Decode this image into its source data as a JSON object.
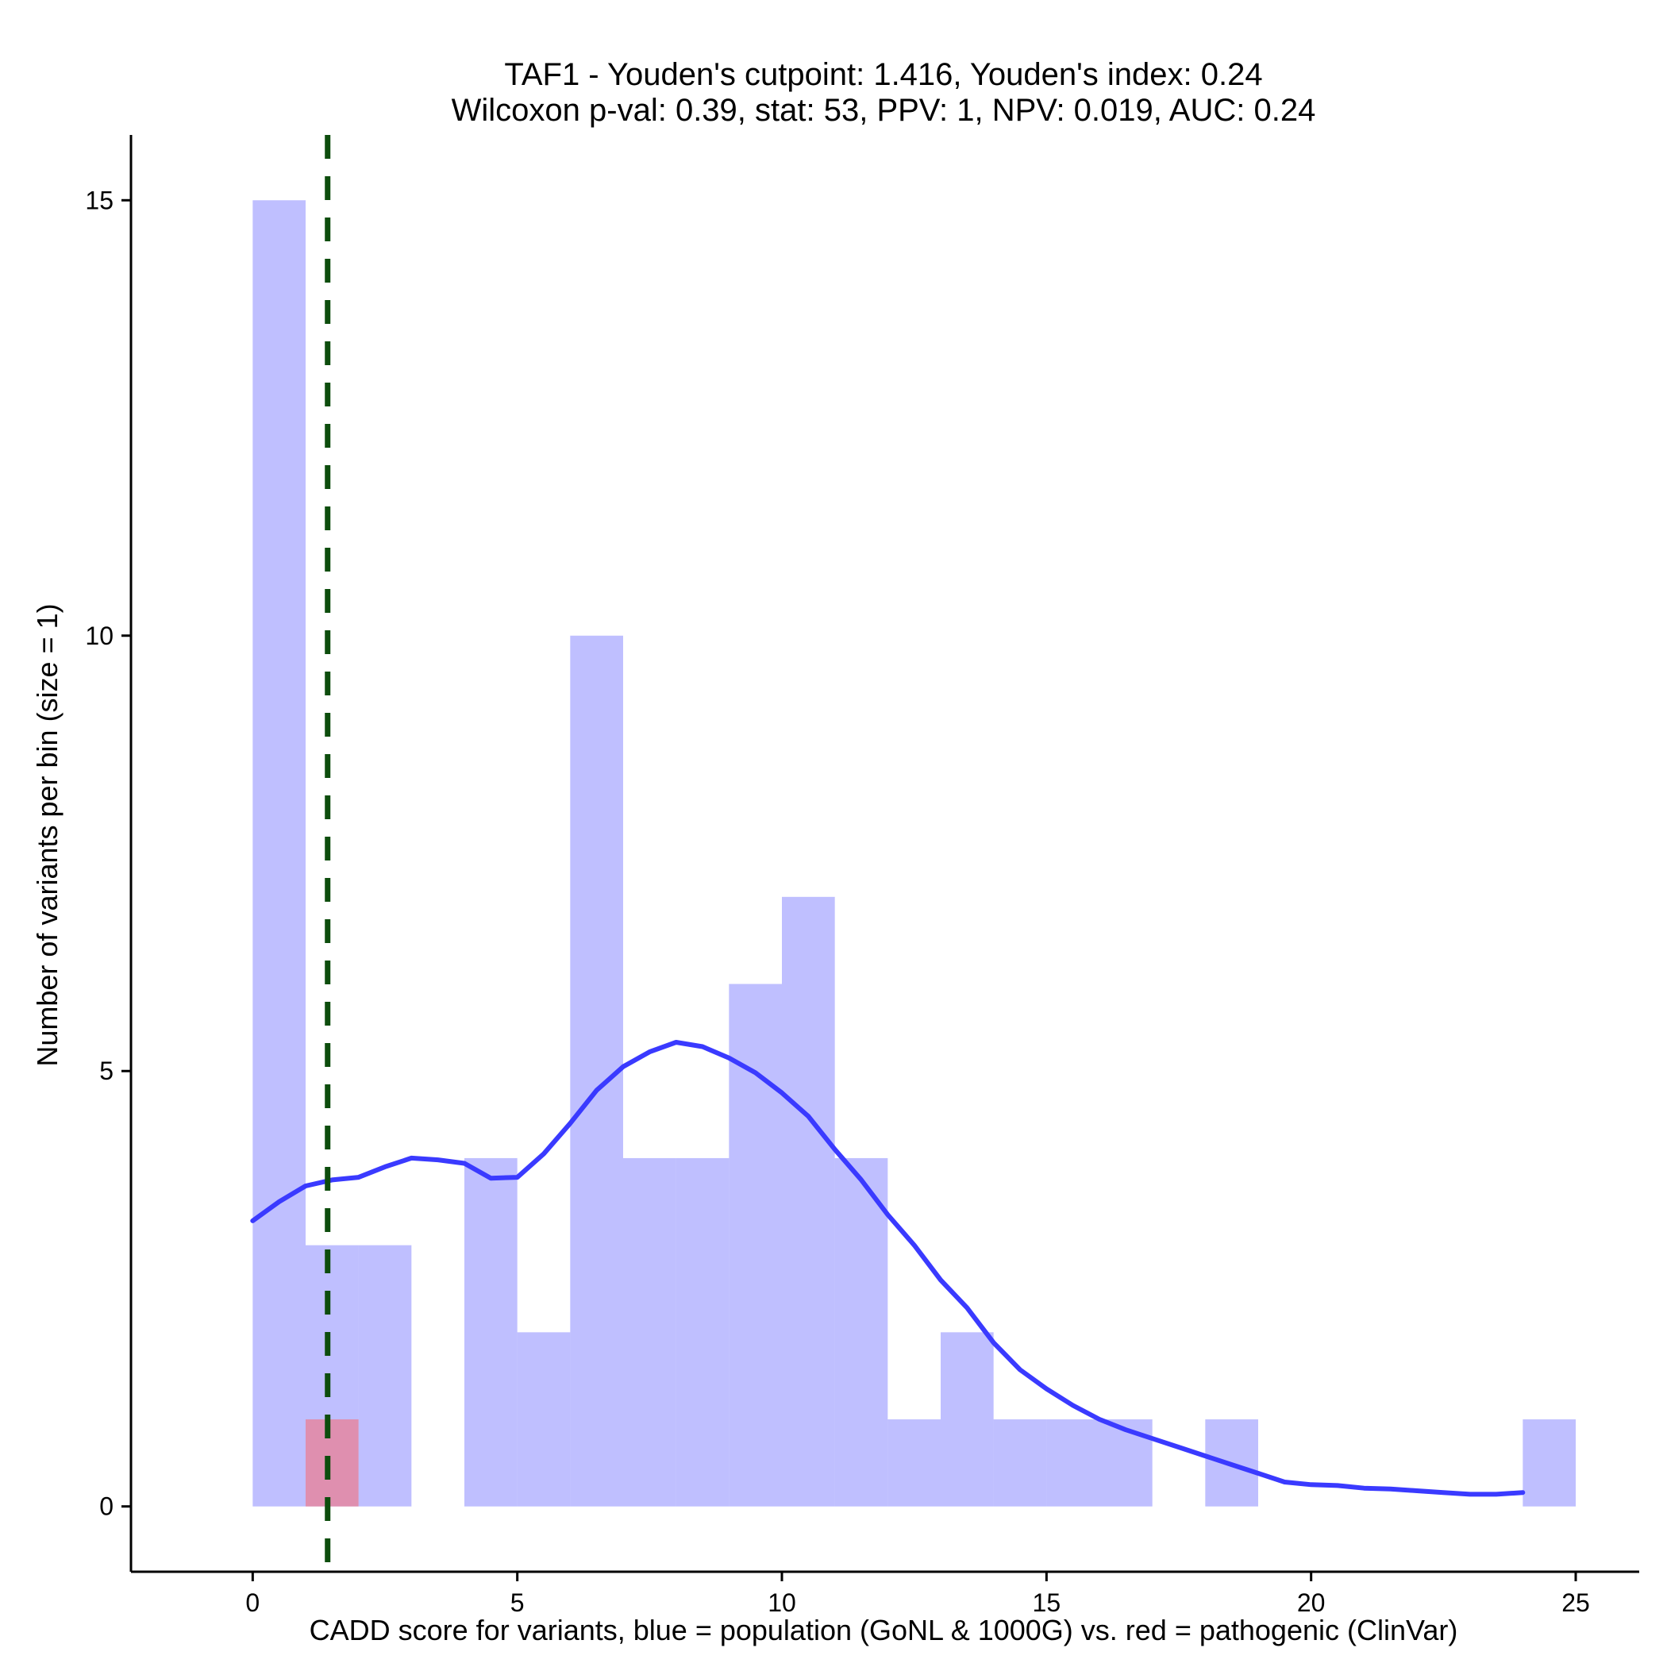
{
  "chart_data": {
    "type": "bar",
    "title_lines": [
      "TAF1 - Youden's cutpoint: 1.416, Youden's index: 0.24",
      "Wilcoxon p-val: 0.39, stat: 53, PPV: 1, NPV: 0.019, AUC: 0.24"
    ],
    "xlabel": "CADD score for variants, blue = population (GoNL & 1000G) vs. red = pathogenic (ClinVar)",
    "ylabel": "Number of variants per bin (size = 1)",
    "xlim": [
      -2.3,
      26.2
    ],
    "ylim": [
      -0.75,
      15.75
    ],
    "x_ticks": [
      0,
      5,
      10,
      15,
      20,
      25
    ],
    "y_ticks": [
      0,
      5,
      10,
      15
    ],
    "bin_width": 1,
    "series": [
      {
        "kind": "histogram",
        "color": "#8080ff",
        "opacity": 0.5,
        "bins": [
          {
            "x0": 0,
            "count": 15
          },
          {
            "x0": 1,
            "count": 3
          },
          {
            "x0": 2,
            "count": 3
          },
          {
            "x0": 3,
            "count": 0
          },
          {
            "x0": 4,
            "count": 4
          },
          {
            "x0": 5,
            "count": 2
          },
          {
            "x0": 6,
            "count": 10
          },
          {
            "x0": 7,
            "count": 4
          },
          {
            "x0": 8,
            "count": 4
          },
          {
            "x0": 9,
            "count": 6
          },
          {
            "x0": 10,
            "count": 7
          },
          {
            "x0": 11,
            "count": 4
          },
          {
            "x0": 12,
            "count": 1
          },
          {
            "x0": 13,
            "count": 2
          },
          {
            "x0": 14,
            "count": 1
          },
          {
            "x0": 15,
            "count": 1
          },
          {
            "x0": 16,
            "count": 1
          },
          {
            "x0": 17,
            "count": 0
          },
          {
            "x0": 18,
            "count": 1
          },
          {
            "x0": 19,
            "count": 0
          },
          {
            "x0": 20,
            "count": 0
          },
          {
            "x0": 21,
            "count": 0
          },
          {
            "x0": 22,
            "count": 0
          },
          {
            "x0": 23,
            "count": 0
          },
          {
            "x0": 24,
            "count": 1
          }
        ]
      },
      {
        "kind": "histogram",
        "color": "#ff6060",
        "opacity": 0.5,
        "bins": [
          {
            "x0": 1,
            "count": 1
          }
        ]
      },
      {
        "kind": "density",
        "color": "#3a3aff",
        "points": [
          [
            0,
            3.28
          ],
          [
            0.5,
            3.5
          ],
          [
            1,
            3.68
          ],
          [
            1.5,
            3.75
          ],
          [
            2,
            3.78
          ],
          [
            2.5,
            3.9
          ],
          [
            3,
            4.0
          ],
          [
            3.5,
            3.98
          ],
          [
            4,
            3.94
          ],
          [
            4.5,
            3.77
          ],
          [
            5,
            3.78
          ],
          [
            5.5,
            4.05
          ],
          [
            6,
            4.4
          ],
          [
            6.5,
            4.78
          ],
          [
            7,
            5.05
          ],
          [
            7.5,
            5.22
          ],
          [
            8,
            5.33
          ],
          [
            8.5,
            5.28
          ],
          [
            9,
            5.15
          ],
          [
            9.5,
            4.98
          ],
          [
            10,
            4.75
          ],
          [
            10.5,
            4.48
          ],
          [
            11,
            4.1
          ],
          [
            11.5,
            3.75
          ],
          [
            12,
            3.35
          ],
          [
            12.5,
            3.0
          ],
          [
            13,
            2.6
          ],
          [
            13.5,
            2.28
          ],
          [
            14,
            1.88
          ],
          [
            14.5,
            1.57
          ],
          [
            15,
            1.35
          ],
          [
            15.5,
            1.16
          ],
          [
            16,
            1.0
          ],
          [
            16.5,
            0.88
          ],
          [
            17,
            0.78
          ],
          [
            17.5,
            0.68
          ],
          [
            18,
            0.58
          ],
          [
            18.5,
            0.48
          ],
          [
            19,
            0.38
          ],
          [
            19.5,
            0.28
          ],
          [
            20,
            0.25
          ],
          [
            20.5,
            0.24
          ],
          [
            21,
            0.21
          ],
          [
            21.5,
            0.2
          ],
          [
            22,
            0.18
          ],
          [
            22.5,
            0.16
          ],
          [
            23,
            0.14
          ],
          [
            23.5,
            0.14
          ],
          [
            24,
            0.16
          ]
        ]
      }
    ],
    "cutpoint": {
      "x": 1.416,
      "color": "#0d4d0d"
    }
  }
}
